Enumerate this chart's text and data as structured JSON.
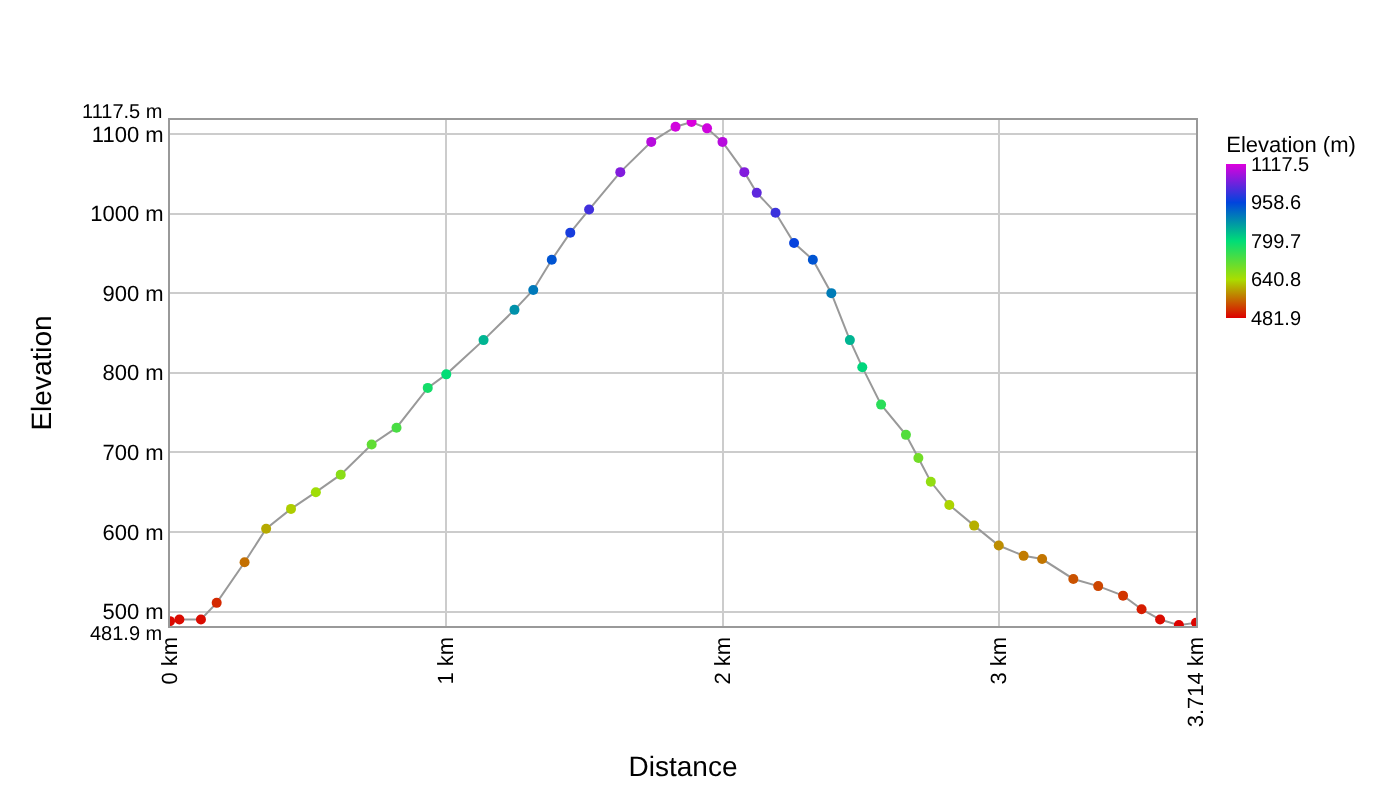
{
  "chart_data": {
    "type": "line",
    "xlabel": "Distance",
    "ylabel": "Elevation",
    "clabel": "Elevation (m)",
    "x": [
      0,
      0.034,
      0.112,
      0.169,
      0.27,
      0.348,
      0.438,
      0.528,
      0.618,
      0.73,
      0.82,
      0.933,
      1.0,
      1.135,
      1.247,
      1.315,
      1.382,
      1.449,
      1.517,
      1.63,
      1.742,
      1.83,
      1.888,
      1.944,
      2.0,
      2.079,
      2.124,
      2.192,
      2.259,
      2.327,
      2.394,
      2.461,
      2.506,
      2.574,
      2.664,
      2.709,
      2.754,
      2.821,
      2.911,
      3.0,
      3.09,
      3.157,
      3.27,
      3.36,
      3.45,
      3.517,
      3.584,
      3.652,
      3.714
    ],
    "values": [
      488,
      490,
      490,
      511,
      562,
      604,
      629,
      650,
      672,
      710,
      731,
      781,
      798,
      841,
      879,
      904,
      942,
      976,
      1005,
      1052,
      1090,
      1109,
      1115,
      1107,
      1090,
      1052,
      1026,
      1001,
      963,
      942,
      900,
      841,
      807,
      760,
      722,
      693,
      663,
      634,
      608,
      583,
      570,
      566,
      541,
      532,
      520,
      503,
      490,
      483,
      486
    ],
    "clim": [
      481.9,
      1117.5
    ],
    "cticks": [
      481.9,
      640.8,
      799.7,
      958.6,
      1117.5
    ],
    "xlim": [
      0,
      3.714
    ],
    "xticks": [
      {
        "value": 0,
        "label": "0 km"
      },
      {
        "value": 1,
        "label": "1 km"
      },
      {
        "value": 2,
        "label": "2 km"
      },
      {
        "value": 3,
        "label": "3 km"
      },
      {
        "value": 3.714,
        "label": "3.714 km"
      }
    ],
    "ylim": [
      481.9,
      1117.5
    ],
    "yticks": [
      {
        "value": 481.9,
        "label": "481.9 m"
      },
      {
        "value": 500,
        "label": "500 m"
      },
      {
        "value": 600,
        "label": "600 m"
      },
      {
        "value": 700,
        "label": "700 m"
      },
      {
        "value": 800,
        "label": "800 m"
      },
      {
        "value": 900,
        "label": "900 m"
      },
      {
        "value": 1000,
        "label": "1000 m"
      },
      {
        "value": 1100,
        "label": "1100 m"
      },
      {
        "value": 1117.5,
        "label": "1117.5 m"
      }
    ],
    "grid": true,
    "marker": "circle",
    "line_style": "solid"
  }
}
